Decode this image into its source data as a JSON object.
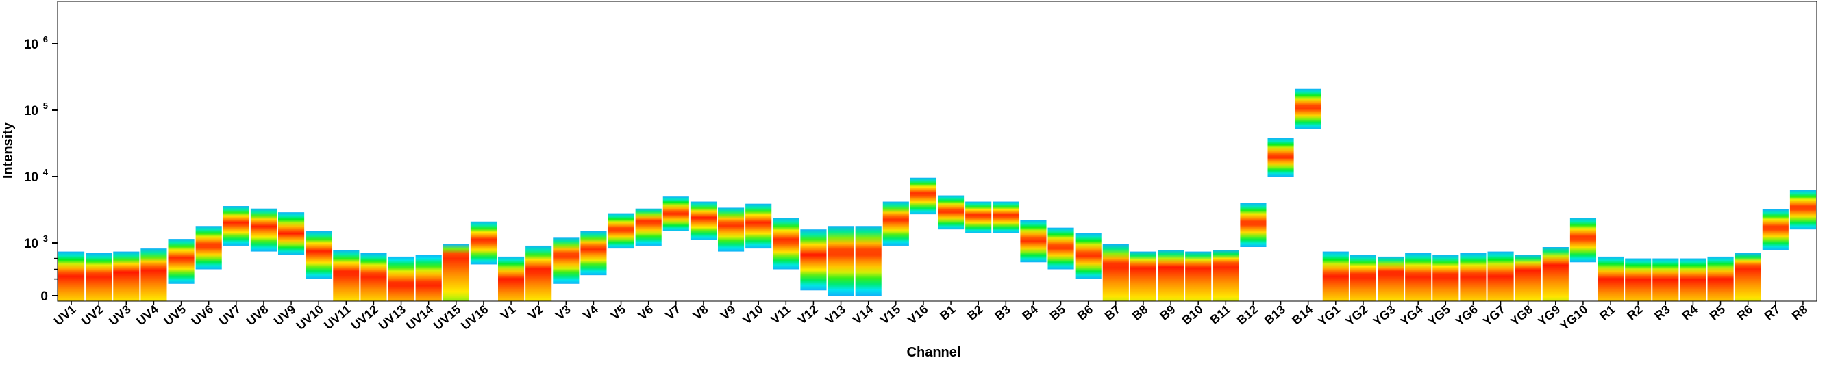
{
  "chart_data": {
    "type": "heatmap",
    "title": "",
    "xlabel": "Channel",
    "ylabel": "Intensity",
    "y_scale": "logicle",
    "y_ticks": [
      {
        "value": 0,
        "label": "0"
      },
      {
        "value": 1000,
        "label": "10",
        "exp": "3"
      },
      {
        "value": 10000,
        "label": "10",
        "exp": "4"
      },
      {
        "value": 100000,
        "label": "10",
        "exp": "5"
      },
      {
        "value": 1000000,
        "label": "10",
        "exp": "6"
      }
    ],
    "categories": [
      "UV1",
      "UV2",
      "UV3",
      "UV4",
      "UV5",
      "UV6",
      "UV7",
      "UV8",
      "UV9",
      "UV10",
      "UV11",
      "UV12",
      "UV13",
      "UV14",
      "UV15",
      "UV16",
      "V1",
      "V2",
      "V3",
      "V4",
      "V5",
      "V6",
      "V7",
      "V8",
      "V9",
      "V10",
      "V11",
      "V12",
      "V13",
      "V14",
      "V15",
      "V16",
      "B1",
      "B2",
      "B3",
      "B4",
      "B5",
      "B6",
      "B7",
      "B8",
      "B9",
      "B10",
      "B11",
      "B12",
      "B13",
      "B14",
      "YG1",
      "YG2",
      "YG3",
      "YG4",
      "YG5",
      "YG6",
      "YG7",
      "YG8",
      "YG9",
      "YG10",
      "R1",
      "R2",
      "R3",
      "R4",
      "R5",
      "R6",
      "R7",
      "R8"
    ],
    "distributions": [
      {
        "channel": "UV1",
        "low": 0,
        "high": 700,
        "peak": 150,
        "cut": true
      },
      {
        "channel": "UV2",
        "low": 0,
        "high": 650,
        "peak": 150,
        "cut": true
      },
      {
        "channel": "UV3",
        "low": 0,
        "high": 700,
        "peak": 200,
        "cut": true
      },
      {
        "channel": "UV4",
        "low": 0,
        "high": 800,
        "peak": 250,
        "cut": true
      },
      {
        "channel": "UV5",
        "low": 50,
        "high": 1150,
        "peak": 500,
        "cut": false
      },
      {
        "channel": "UV6",
        "low": 250,
        "high": 1800,
        "peak": 900,
        "cut": false
      },
      {
        "channel": "UV7",
        "low": 900,
        "high": 3600,
        "peak": 2000,
        "cut": false
      },
      {
        "channel": "UV8",
        "low": 700,
        "high": 3300,
        "peak": 1800,
        "cut": false
      },
      {
        "channel": "UV9",
        "low": 600,
        "high": 2900,
        "peak": 1400,
        "cut": false
      },
      {
        "channel": "UV10",
        "low": 100,
        "high": 1500,
        "peak": 700,
        "cut": false
      },
      {
        "channel": "UV11",
        "low": 0,
        "high": 750,
        "peak": 200,
        "cut": true
      },
      {
        "channel": "UV12",
        "low": 0,
        "high": 650,
        "peak": 150,
        "cut": true
      },
      {
        "channel": "UV13",
        "low": 0,
        "high": 550,
        "peak": 50,
        "cut": true
      },
      {
        "channel": "UV14",
        "low": 0,
        "high": 600,
        "peak": 50,
        "cut": true
      },
      {
        "channel": "UV15",
        "low": 0,
        "high": 950,
        "peak": 600,
        "cut": true
      },
      {
        "channel": "UV16",
        "low": 350,
        "high": 2100,
        "peak": 1100,
        "cut": false
      },
      {
        "channel": "V1",
        "low": 0,
        "high": 550,
        "peak": 100,
        "cut": true
      },
      {
        "channel": "V2",
        "low": 0,
        "high": 900,
        "peak": 250,
        "cut": true
      },
      {
        "channel": "V3",
        "low": 50,
        "high": 1200,
        "peak": 600,
        "cut": false
      },
      {
        "channel": "V4",
        "low": 150,
        "high": 1500,
        "peak": 800,
        "cut": false
      },
      {
        "channel": "V5",
        "low": 800,
        "high": 2800,
        "peak": 1600,
        "cut": false
      },
      {
        "channel": "V6",
        "low": 900,
        "high": 3300,
        "peak": 2100,
        "cut": false
      },
      {
        "channel": "V7",
        "low": 1500,
        "high": 5000,
        "peak": 2800,
        "cut": false
      },
      {
        "channel": "V8",
        "low": 1100,
        "high": 4200,
        "peak": 2400,
        "cut": false
      },
      {
        "channel": "V9",
        "low": 700,
        "high": 3400,
        "peak": 1900,
        "cut": false
      },
      {
        "channel": "V10",
        "low": 800,
        "high": 3900,
        "peak": 2000,
        "cut": false
      },
      {
        "channel": "V11",
        "low": 250,
        "high": 2400,
        "peak": 1100,
        "cut": false
      },
      {
        "channel": "V12",
        "low": 10,
        "high": 1600,
        "peak": 600,
        "cut": false
      },
      {
        "channel": "V13",
        "low": 0,
        "high": 1800,
        "peak": 700,
        "cut": false
      },
      {
        "channel": "V14",
        "low": 0,
        "high": 1800,
        "peak": 700,
        "cut": false
      },
      {
        "channel": "V15",
        "low": 900,
        "high": 4200,
        "peak": 2300,
        "cut": false
      },
      {
        "channel": "V16",
        "low": 2700,
        "high": 9600,
        "peak": 5500,
        "cut": false
      },
      {
        "channel": "B1",
        "low": 1600,
        "high": 5200,
        "peak": 3000,
        "cut": false
      },
      {
        "channel": "B2",
        "low": 1400,
        "high": 4200,
        "peak": 2600,
        "cut": false
      },
      {
        "channel": "B3",
        "low": 1400,
        "high": 4200,
        "peak": 2600,
        "cut": false
      },
      {
        "channel": "B4",
        "low": 400,
        "high": 2200,
        "peak": 1100,
        "cut": false
      },
      {
        "channel": "B5",
        "low": 250,
        "high": 1700,
        "peak": 850,
        "cut": false
      },
      {
        "channel": "B6",
        "low": 100,
        "high": 1400,
        "peak": 600,
        "cut": false
      },
      {
        "channel": "B7",
        "low": 0,
        "high": 950,
        "peak": 350,
        "cut": true
      },
      {
        "channel": "B8",
        "low": 0,
        "high": 700,
        "peak": 300,
        "cut": true
      },
      {
        "channel": "B9",
        "low": 0,
        "high": 750,
        "peak": 300,
        "cut": true
      },
      {
        "channel": "B10",
        "low": 0,
        "high": 700,
        "peak": 300,
        "cut": true
      },
      {
        "channel": "B11",
        "low": 0,
        "high": 750,
        "peak": 350,
        "cut": true
      },
      {
        "channel": "B12",
        "low": 850,
        "high": 4000,
        "peak": 2000,
        "cut": false
      },
      {
        "channel": "B13",
        "low": 10000,
        "high": 38000,
        "peak": 20000,
        "cut": false
      },
      {
        "channel": "B14",
        "low": 52000,
        "high": 210000,
        "peak": 110000,
        "cut": false
      },
      {
        "channel": "YG1",
        "low": 0,
        "high": 700,
        "peak": 150,
        "cut": true
      },
      {
        "channel": "YG2",
        "low": 0,
        "high": 600,
        "peak": 150,
        "cut": true
      },
      {
        "channel": "YG3",
        "low": 0,
        "high": 550,
        "peak": 200,
        "cut": true
      },
      {
        "channel": "YG4",
        "low": 0,
        "high": 650,
        "peak": 150,
        "cut": true
      },
      {
        "channel": "YG5",
        "low": 0,
        "high": 600,
        "peak": 150,
        "cut": true
      },
      {
        "channel": "YG6",
        "low": 0,
        "high": 650,
        "peak": 150,
        "cut": true
      },
      {
        "channel": "YG7",
        "low": 0,
        "high": 700,
        "peak": 150,
        "cut": true
      },
      {
        "channel": "YG8",
        "low": 0,
        "high": 600,
        "peak": 250,
        "cut": true
      },
      {
        "channel": "YG9",
        "low": 0,
        "high": 850,
        "peak": 350,
        "cut": true
      },
      {
        "channel": "YG10",
        "low": 400,
        "high": 2400,
        "peak": 1200,
        "cut": false
      },
      {
        "channel": "R1",
        "low": 0,
        "high": 550,
        "peak": 100,
        "cut": true
      },
      {
        "channel": "R2",
        "low": 0,
        "high": 500,
        "peak": 100,
        "cut": true
      },
      {
        "channel": "R3",
        "low": 0,
        "high": 500,
        "peak": 100,
        "cut": true
      },
      {
        "channel": "R4",
        "low": 0,
        "high": 500,
        "peak": 100,
        "cut": true
      },
      {
        "channel": "R5",
        "low": 0,
        "high": 550,
        "peak": 100,
        "cut": true
      },
      {
        "channel": "R6",
        "low": 0,
        "high": 650,
        "peak": 300,
        "cut": true
      },
      {
        "channel": "R7",
        "low": 750,
        "high": 3200,
        "peak": 1700,
        "cut": false
      },
      {
        "channel": "R8",
        "low": 1600,
        "high": 6300,
        "peak": 3400,
        "cut": false
      }
    ],
    "colors": {
      "low_edge": "#1e90ff",
      "cyan": "#00e5ee",
      "green": "#00ee22",
      "yellow": "#ffee00",
      "orange": "#ff8c00",
      "peak": "#ff1500",
      "axis": "#000000"
    },
    "grid": false,
    "legend": "none"
  }
}
